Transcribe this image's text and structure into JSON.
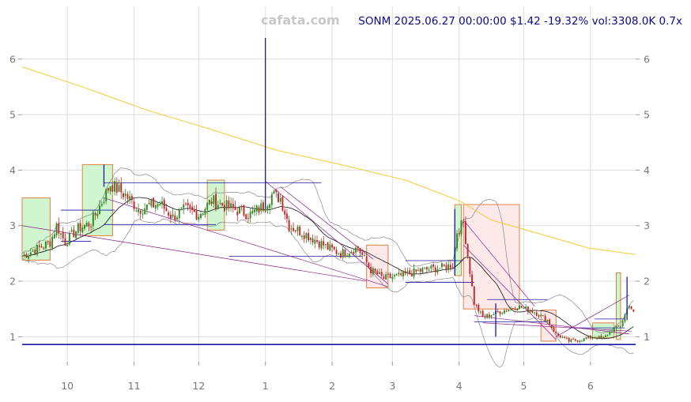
{
  "watermark": "cafata.com",
  "header": "SONM 2025.06.27 00:00:00 $1.42 -19.32% vol:3308.0K 0.7x",
  "colors": {
    "up": "#2e8b20",
    "down": "#c0282a",
    "grid": "#dddddd",
    "sma_long": "#f5c518",
    "sma_short": "#111111",
    "band": "#888888",
    "trend": "#8b1a8b",
    "level": "#1a1aa8",
    "header": "#0a0a8a",
    "watermark": "#c8c8c8",
    "box_up": "#ccf5cc",
    "box_down": "#fde8e8",
    "box_edge": "#e08040"
  },
  "chart_data": {
    "type": "candlestick",
    "symbol": "SONM",
    "date": "2025.06.27 00:00:00",
    "last_price": 1.42,
    "change_pct": -19.32,
    "volume": "3308.0K",
    "volume_ratio": "0.7x",
    "ylim": [
      0.55,
      6.95
    ],
    "xlim": [
      -8,
      277
    ],
    "y_ticks": [
      1,
      2,
      3,
      4,
      5,
      6
    ],
    "x_ticks": [
      {
        "label": "10",
        "day": 13
      },
      {
        "label": "11",
        "day": 44
      },
      {
        "label": "12",
        "day": 74
      },
      {
        "label": "1",
        "day": 105
      },
      {
        "label": "2",
        "day": 136
      },
      {
        "label": "3",
        "day": 164
      },
      {
        "label": "4",
        "day": 195
      },
      {
        "label": "5",
        "day": 225
      },
      {
        "label": "6",
        "day": 256
      }
    ],
    "anchors": [
      [
        -8,
        2.45
      ],
      [
        5,
        2.7
      ],
      [
        8,
        3.0
      ],
      [
        12,
        2.7
      ],
      [
        18,
        2.95
      ],
      [
        24,
        3.05
      ],
      [
        28,
        3.35
      ],
      [
        33,
        3.75
      ],
      [
        40,
        3.55
      ],
      [
        46,
        3.3
      ],
      [
        56,
        3.4
      ],
      [
        62,
        3.15
      ],
      [
        68,
        3.3
      ],
      [
        74,
        3.2
      ],
      [
        80,
        3.45
      ],
      [
        90,
        3.3
      ],
      [
        98,
        3.2
      ],
      [
        104,
        3.35
      ],
      [
        108,
        3.55
      ],
      [
        112,
        3.5
      ],
      [
        116,
        3.0
      ],
      [
        126,
        2.8
      ],
      [
        134,
        2.6
      ],
      [
        140,
        2.5
      ],
      [
        148,
        2.6
      ],
      [
        154,
        2.2
      ],
      [
        160,
        2.05
      ],
      [
        168,
        2.1
      ],
      [
        178,
        2.2
      ],
      [
        188,
        2.25
      ],
      [
        192,
        2.3
      ],
      [
        194,
        2.9
      ],
      [
        197,
        3.05
      ],
      [
        202,
        1.6
      ],
      [
        206,
        1.35
      ],
      [
        214,
        1.45
      ],
      [
        222,
        1.55
      ],
      [
        230,
        1.45
      ],
      [
        236,
        1.3
      ],
      [
        240,
        1.05
      ],
      [
        246,
        0.92
      ],
      [
        252,
        0.95
      ],
      [
        258,
        1.0
      ],
      [
        262,
        0.97
      ],
      [
        266,
        1.12
      ],
      [
        270,
        1.2
      ],
      [
        274,
        1.6
      ],
      [
        276,
        1.42
      ]
    ],
    "spikes": [
      {
        "day": 30,
        "high": 4.1,
        "low": 3.7
      },
      {
        "day": 105,
        "high": 6.38,
        "low": 3.3
      },
      {
        "day": 193,
        "high": 3.3,
        "low": 2.1
      },
      {
        "day": 212,
        "high": 1.6,
        "low": 1.0
      },
      {
        "day": 273,
        "high": 2.08,
        "low": 1.3
      }
    ],
    "sma_long": [
      [
        -8,
        5.86
      ],
      [
        20,
        5.5
      ],
      [
        50,
        5.08
      ],
      [
        80,
        4.73
      ],
      [
        110,
        4.36
      ],
      [
        140,
        4.1
      ],
      [
        170,
        3.82
      ],
      [
        195,
        3.45
      ],
      [
        210,
        3.1
      ],
      [
        230,
        2.88
      ],
      [
        255,
        2.6
      ],
      [
        277,
        2.48
      ]
    ],
    "boxes": [
      {
        "x0": -8,
        "x1": 5,
        "y0": 2.38,
        "y1": 3.5,
        "kind": "up"
      },
      {
        "x0": 20,
        "x1": 34,
        "y0": 2.82,
        "y1": 4.1,
        "kind": "up"
      },
      {
        "x0": 78,
        "x1": 86,
        "y0": 2.92,
        "y1": 3.82,
        "kind": "up"
      },
      {
        "x0": 152,
        "x1": 162,
        "y0": 1.88,
        "y1": 2.65,
        "kind": "down"
      },
      {
        "x0": 193,
        "x1": 196,
        "y0": 2.1,
        "y1": 3.38,
        "kind": "up"
      },
      {
        "x0": 197,
        "x1": 223,
        "y0": 1.5,
        "y1": 3.38,
        "kind": "down"
      },
      {
        "x0": 233,
        "x1": 240,
        "y0": 0.92,
        "y1": 1.48,
        "kind": "down"
      },
      {
        "x0": 257,
        "x1": 267,
        "y0": 0.98,
        "y1": 1.25,
        "kind": "up"
      },
      {
        "x0": 268,
        "x1": 270,
        "y0": 0.95,
        "y1": 2.15,
        "kind": "up"
      }
    ],
    "levels": [
      {
        "x0": -8,
        "x1": 277,
        "y": 0.86,
        "width": 1.6
      },
      {
        "x0": 10,
        "x1": 35,
        "y": 3.28,
        "width": 0.8
      },
      {
        "x0": 10,
        "x1": 24,
        "y": 2.72,
        "width": 0.8
      },
      {
        "x0": 30,
        "x1": 131,
        "y": 3.77,
        "width": 0.8
      },
      {
        "x0": 30,
        "x1": 82,
        "y": 3.02,
        "width": 0.8
      },
      {
        "x0": 88,
        "x1": 150,
        "y": 2.45,
        "width": 0.8
      },
      {
        "x0": 170,
        "x1": 197,
        "y": 2.37,
        "width": 0.8
      },
      {
        "x0": 170,
        "x1": 202,
        "y": 1.98,
        "width": 0.8
      },
      {
        "x0": 202,
        "x1": 236,
        "y": 1.27,
        "width": 0.8
      },
      {
        "x0": 208,
        "x1": 236,
        "y": 1.67,
        "width": 0.8
      },
      {
        "x0": 246,
        "x1": 272,
        "y": 1.16,
        "width": 0.8
      },
      {
        "x0": 258,
        "x1": 272,
        "y": 1.32,
        "width": 0.8
      }
    ],
    "trendlines": [
      [
        [
          30,
          3.5
        ],
        [
          162,
          1.9
        ]
      ],
      [
        [
          -8,
          3.0
        ],
        [
          152,
          2.0
        ]
      ],
      [
        [
          112,
          3.7
        ],
        [
          155,
          2.4
        ]
      ],
      [
        [
          105,
          3.8
        ],
        [
          162,
          1.95
        ]
      ],
      [
        [
          197,
          3.1
        ],
        [
          230,
          1.55
        ]
      ],
      [
        [
          197,
          2.65
        ],
        [
          240,
          0.95
        ]
      ],
      [
        [
          206,
          1.25
        ],
        [
          275,
          1.1
        ]
      ],
      [
        [
          202,
          1.38
        ],
        [
          274,
          1.05
        ]
      ],
      [
        [
          240,
          1.0
        ],
        [
          274,
          1.75
        ]
      ]
    ]
  }
}
